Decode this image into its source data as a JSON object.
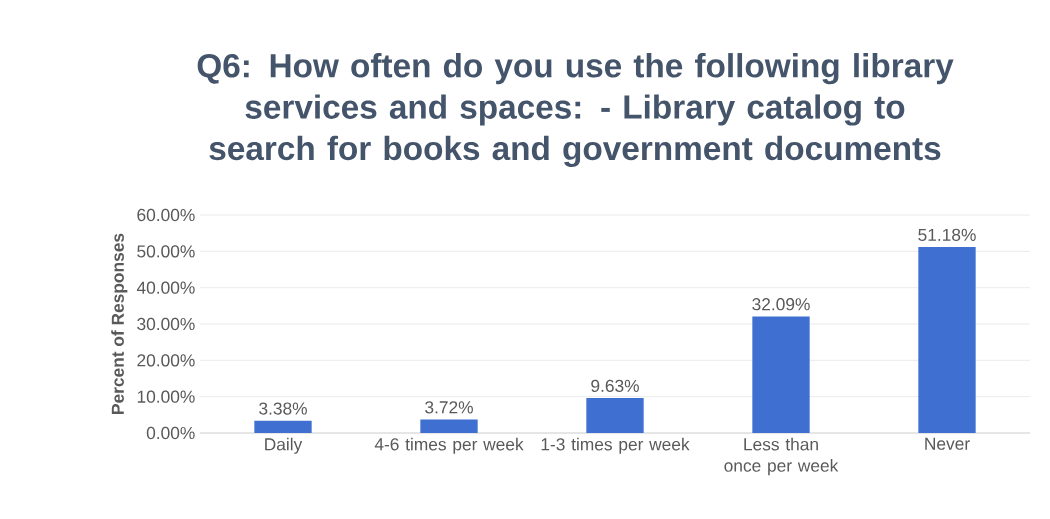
{
  "chart_data": {
    "type": "bar",
    "title": "Q6: How often do you use the following library services and spaces: - Library catalog to search for books and government documents",
    "ylabel": "Percent of Responses",
    "categories": [
      "Daily",
      "4-6 times per week",
      "1-3 times per week",
      "Less than once per week",
      "Never"
    ],
    "values": [
      3.38,
      3.72,
      9.63,
      32.09,
      51.18
    ],
    "value_labels": [
      "3.38%",
      "3.72%",
      "9.63%",
      "32.09%",
      "51.18%"
    ],
    "color": "#3f6fd0",
    "ylim": [
      0,
      60
    ],
    "yticks": [
      {
        "value": 0,
        "label": "0.00%"
      },
      {
        "value": 10,
        "label": "10.00%"
      },
      {
        "value": 20,
        "label": "20.00%"
      },
      {
        "value": 30,
        "label": "30.00%"
      },
      {
        "value": 40,
        "label": "40.00%"
      },
      {
        "value": 50,
        "label": "50.00%"
      },
      {
        "value": 60,
        "label": "60.00%"
      }
    ],
    "grid": "y"
  }
}
